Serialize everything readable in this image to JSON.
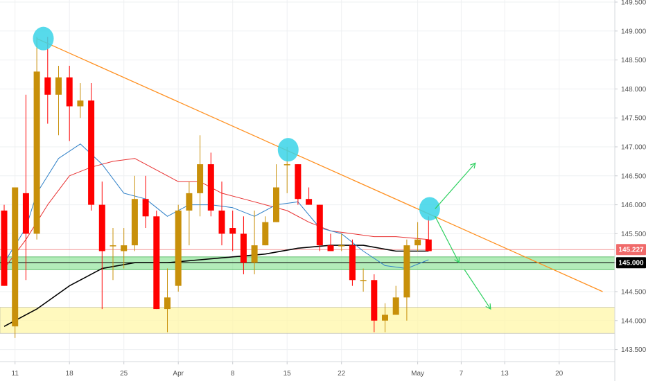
{
  "colors": {
    "bull": "#c8900a",
    "bear": "#ff0000",
    "ma_fast": "#2f80c8",
    "ma_mid": "#e83030",
    "ma_slow": "#000000",
    "trendline": "#ff9020",
    "support_zone": "#7ee08a",
    "demand_zone": "#fff7a8",
    "highlight": "#39d3e8",
    "arrows": "#2ed060",
    "current_price_line": "#f08080",
    "grid": "#eef0f2"
  },
  "chart_data": {
    "type": "candlestick",
    "title": "",
    "xlabel": "",
    "ylabel": "",
    "ylim": [
      143.2,
      149.6
    ],
    "y_ticks": [
      "143.500",
      "144.000",
      "144.500",
      "145.000",
      "145.500",
      "146.000",
      "146.500",
      "147.000",
      "147.500",
      "148.000",
      "148.500",
      "149.000",
      "149.500"
    ],
    "x_ticks": [
      {
        "label": "11",
        "bar": 1
      },
      {
        "label": "18",
        "bar": 6
      },
      {
        "label": "25",
        "bar": 11
      },
      {
        "label": "Apr",
        "bar": 16
      },
      {
        "label": "8",
        "bar": 21
      },
      {
        "label": "15",
        "bar": 26
      },
      {
        "label": "22",
        "bar": 31
      },
      {
        "label": "May",
        "bar": 38
      },
      {
        "label": "7",
        "bar": 42
      },
      {
        "label": "13",
        "bar": 46
      },
      {
        "label": "20",
        "bar": 51
      }
    ],
    "candles": [
      {
        "o": 145.9,
        "h": 146.0,
        "l": 144.6,
        "c": 144.6
      },
      {
        "o": 143.9,
        "h": 146.3,
        "l": 143.7,
        "c": 146.3
      },
      {
        "o": 146.2,
        "h": 147.9,
        "l": 144.7,
        "c": 145.5
      },
      {
        "o": 145.5,
        "h": 148.9,
        "l": 145.4,
        "c": 148.3
      },
      {
        "o": 148.2,
        "h": 148.9,
        "l": 147.4,
        "c": 147.9
      },
      {
        "o": 147.9,
        "h": 148.4,
        "l": 147.2,
        "c": 148.2
      },
      {
        "o": 148.2,
        "h": 148.4,
        "l": 147.1,
        "c": 147.7
      },
      {
        "o": 147.7,
        "h": 148.1,
        "l": 147.5,
        "c": 147.8
      },
      {
        "o": 147.8,
        "h": 148.1,
        "l": 145.9,
        "c": 146.0
      },
      {
        "o": 146.0,
        "h": 146.4,
        "l": 144.2,
        "c": 145.2
      },
      {
        "o": 145.3,
        "h": 145.6,
        "l": 144.7,
        "c": 145.3
      },
      {
        "o": 145.2,
        "h": 145.6,
        "l": 144.9,
        "c": 145.3
      },
      {
        "o": 145.3,
        "h": 146.5,
        "l": 145.2,
        "c": 146.1
      },
      {
        "o": 146.1,
        "h": 146.5,
        "l": 145.6,
        "c": 145.8
      },
      {
        "o": 145.8,
        "h": 145.9,
        "l": 144.2,
        "c": 144.2
      },
      {
        "o": 144.2,
        "h": 144.9,
        "l": 143.8,
        "c": 144.4
      },
      {
        "o": 144.6,
        "h": 146.0,
        "l": 144.5,
        "c": 145.9
      },
      {
        "o": 145.9,
        "h": 146.4,
        "l": 145.3,
        "c": 146.2
      },
      {
        "o": 146.2,
        "h": 147.2,
        "l": 145.8,
        "c": 146.7
      },
      {
        "o": 146.7,
        "h": 146.9,
        "l": 145.8,
        "c": 145.9
      },
      {
        "o": 145.9,
        "h": 146.4,
        "l": 145.3,
        "c": 145.5
      },
      {
        "o": 145.6,
        "h": 145.9,
        "l": 145.2,
        "c": 145.5
      },
      {
        "o": 145.5,
        "h": 145.8,
        "l": 144.8,
        "c": 145.0
      },
      {
        "o": 145.0,
        "h": 145.9,
        "l": 144.8,
        "c": 145.3
      },
      {
        "o": 145.3,
        "h": 145.8,
        "l": 145.3,
        "c": 145.7
      },
      {
        "o": 145.7,
        "h": 146.7,
        "l": 145.7,
        "c": 146.3
      },
      {
        "o": 146.7,
        "h": 147.0,
        "l": 146.2,
        "c": 146.7
      },
      {
        "o": 146.7,
        "h": 146.7,
        "l": 146.0,
        "c": 146.1
      },
      {
        "o": 146.1,
        "h": 146.3,
        "l": 146.0,
        "c": 146.0
      },
      {
        "o": 146.0,
        "h": 146.0,
        "l": 145.2,
        "c": 145.3
      },
      {
        "o": 145.3,
        "h": 145.5,
        "l": 145.2,
        "c": 145.2
      },
      {
        "o": 145.3,
        "h": 145.5,
        "l": 145.2,
        "c": 145.3
      },
      {
        "o": 145.3,
        "h": 145.4,
        "l": 144.6,
        "c": 144.7
      },
      {
        "o": 144.7,
        "h": 144.9,
        "l": 144.5,
        "c": 144.7
      },
      {
        "o": 144.7,
        "h": 144.8,
        "l": 143.8,
        "c": 144.0
      },
      {
        "o": 144.0,
        "h": 144.3,
        "l": 143.8,
        "c": 144.1
      },
      {
        "o": 144.1,
        "h": 144.6,
        "l": 144.1,
        "c": 144.4
      },
      {
        "o": 144.4,
        "h": 145.4,
        "l": 144.0,
        "c": 145.3
      },
      {
        "o": 145.3,
        "h": 145.7,
        "l": 145.2,
        "c": 145.4
      },
      {
        "o": 145.4,
        "h": 145.8,
        "l": 145.2,
        "c": 145.2
      }
    ],
    "ma_fast": [
      [
        0,
        145.0
      ],
      [
        2,
        145.6
      ],
      [
        3,
        146.2
      ],
      [
        5,
        146.8
      ],
      [
        7,
        147.05
      ],
      [
        9,
        146.7
      ],
      [
        11,
        146.2
      ],
      [
        13,
        146.1
      ],
      [
        15,
        145.8
      ],
      [
        17,
        146.0
      ],
      [
        19,
        146.0
      ],
      [
        21,
        145.95
      ],
      [
        23,
        145.8
      ],
      [
        25,
        146.0
      ],
      [
        27,
        146.05
      ],
      [
        29,
        145.6
      ],
      [
        31,
        145.5
      ],
      [
        33,
        145.2
      ],
      [
        35,
        144.95
      ],
      [
        37,
        144.9
      ],
      [
        39,
        145.05
      ]
    ],
    "ma_mid": [
      [
        0,
        144.9
      ],
      [
        2,
        145.4
      ],
      [
        4,
        146.0
      ],
      [
        6,
        146.5
      ],
      [
        8,
        146.65
      ],
      [
        10,
        146.75
      ],
      [
        12,
        146.8
      ],
      [
        14,
        146.6
      ],
      [
        16,
        146.4
      ],
      [
        18,
        146.4
      ],
      [
        20,
        146.2
      ],
      [
        22,
        146.1
      ],
      [
        24,
        146.0
      ],
      [
        26,
        145.9
      ],
      [
        28,
        145.7
      ],
      [
        30,
        145.55
      ],
      [
        32,
        145.5
      ],
      [
        34,
        145.45
      ],
      [
        36,
        145.45
      ],
      [
        39,
        145.4
      ]
    ],
    "ma_slow": [
      [
        0,
        143.9
      ],
      [
        3,
        144.2
      ],
      [
        6,
        144.6
      ],
      [
        9,
        144.9
      ],
      [
        12,
        145.0
      ],
      [
        15,
        145.0
      ],
      [
        18,
        145.05
      ],
      [
        21,
        145.1
      ],
      [
        24,
        145.15
      ],
      [
        27,
        145.25
      ],
      [
        30,
        145.3
      ],
      [
        33,
        145.3
      ],
      [
        36,
        145.2
      ],
      [
        39,
        145.2
      ]
    ],
    "trendline": [
      [
        3,
        148.87
      ],
      [
        55,
        144.5
      ]
    ],
    "support_zone": [
      144.88,
      145.1
    ],
    "demand_zone": [
      143.78,
      144.23
    ],
    "support_line": 145.0,
    "current_price_line": 145.227,
    "highlights": [
      {
        "bar": 3.6,
        "price": 148.87
      },
      {
        "bar": 26.1,
        "price": 146.95
      },
      {
        "bar": 39.1,
        "price": 145.93
      }
    ],
    "arrows": [
      {
        "from": [
          39.6,
          145.93
        ],
        "to": [
          43.3,
          146.72
        ]
      },
      {
        "from": [
          39.6,
          145.8
        ],
        "to": [
          41.8,
          145.0
        ]
      },
      {
        "from": [
          42.3,
          144.88
        ],
        "to": [
          44.7,
          144.2
        ]
      }
    ],
    "price_badges": [
      {
        "label": "145.227",
        "price": 145.227,
        "color": "#f06a6a"
      },
      {
        "label": "145.000",
        "price": 145.0,
        "color": "#000000"
      }
    ]
  }
}
